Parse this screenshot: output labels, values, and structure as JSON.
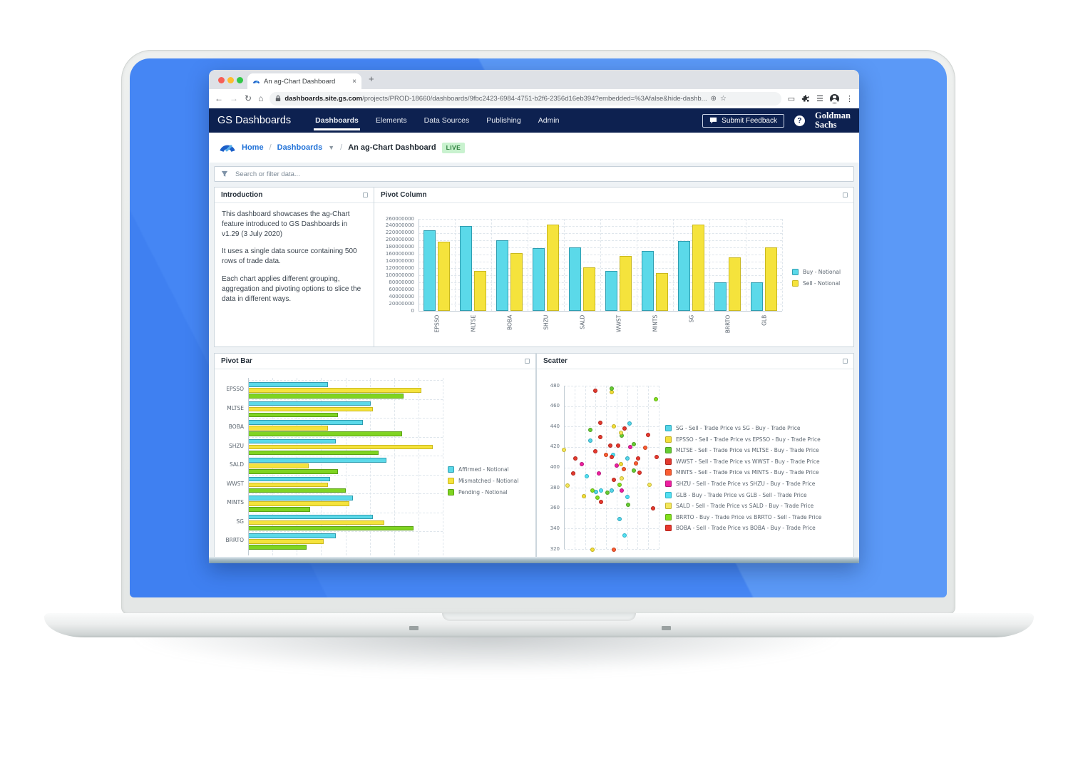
{
  "browser": {
    "tab_title": "An ag-Chart Dashboard",
    "tab_close_glyph": "×",
    "new_tab_glyph": "+",
    "url_domain": "dashboards.site.gs.com",
    "url_path": "/projects/PROD-18660/dashboards/9fbc2423-6984-4751-b2f6-2356d16eb394?embedded=%3Afalse&hide-dashb..."
  },
  "nav": {
    "brand": "GS Dashboards",
    "items": [
      {
        "label": "Dashboards",
        "active": true
      },
      {
        "label": "Elements",
        "active": false
      },
      {
        "label": "Data Sources",
        "active": false
      },
      {
        "label": "Publishing",
        "active": false
      },
      {
        "label": "Admin",
        "active": false
      }
    ],
    "submit_feedback_label": "Submit Feedback",
    "help_glyph": "?",
    "logo_line1": "Goldman",
    "logo_line2": "Sachs"
  },
  "breadcrumb": {
    "home": "Home",
    "separator": "/",
    "section": "Dashboards",
    "current": "An ag-Chart Dashboard",
    "badge": "LIVE"
  },
  "search": {
    "placeholder": "Search or filter data..."
  },
  "panels": {
    "introduction": {
      "title": "Introduction",
      "paragraphs": [
        "This dashboard showcases the ag-Chart feature introduced to GS Dashboards in v1.29 (3 July 2020)",
        "It uses a single data source containing 500 rows of trade data.",
        "Each chart applies different grouping, aggregation and pivoting options to slice the data in different ways."
      ]
    },
    "pivot_column": {
      "title": "Pivot Column"
    },
    "pivot_bar": {
      "title": "Pivot Bar"
    },
    "scatter": {
      "title": "Scatter"
    }
  },
  "colors": {
    "navy": "#0d2150",
    "link_blue": "#2172d8",
    "live_badge_bg": "#c9f2cf",
    "live_badge_text": "#2a7d3b",
    "screen_blue": "#4586f4",
    "buy_cyan": "#5bd9e9",
    "sell_yellow": "#f5e33c",
    "pending_green": "#7fd421"
  },
  "chart_data": [
    {
      "id": "pivot_column",
      "type": "bar",
      "title": "Pivot Column",
      "categories": [
        "EPSSO",
        "MLTSE",
        "BOBA",
        "SHZU",
        "SALD",
        "WWST",
        "MINTS",
        "SG",
        "BRRTO",
        "GLB"
      ],
      "series": [
        {
          "name": "Buy - Notional",
          "color": "#5bd9e9",
          "stroke": "#2f9db0",
          "values": [
            228000000,
            239000000,
            199000000,
            178000000,
            179000000,
            112000000,
            170000000,
            197000000,
            80000000,
            81000000
          ]
        },
        {
          "name": "Sell - Notional",
          "color": "#f5e33c",
          "stroke": "#c9b820",
          "values": [
            196000000,
            112000000,
            164000000,
            244000000,
            122000000,
            156000000,
            106000000,
            243000000,
            152000000,
            180000000
          ]
        }
      ],
      "ylim": [
        0,
        260000000
      ],
      "ytick_step": 20000000,
      "xlabel": "",
      "ylabel": "",
      "grid": true,
      "legend_position": "right"
    },
    {
      "id": "pivot_bar",
      "type": "bar-horizontal",
      "title": "Pivot Bar",
      "categories": [
        "EPSSO",
        "MLTSE",
        "BOBA",
        "SHZU",
        "SALD",
        "WWST",
        "MINTS",
        "SG",
        "BRRTO"
      ],
      "series": [
        {
          "name": "Affirmed - Notional",
          "color": "#5bd9e9",
          "stroke": "#2f9db0",
          "values": [
            41,
            63,
            59,
            45,
            71,
            42,
            54,
            64,
            45
          ]
        },
        {
          "name": "Mismatched - Notional",
          "color": "#f5e33c",
          "stroke": "#c9b820",
          "values": [
            89,
            64,
            41,
            95,
            31,
            41,
            52,
            70,
            39
          ]
        },
        {
          "name": "Pending - Notional",
          "color": "#7fd421",
          "stroke": "#5ba015",
          "values": [
            80,
            46,
            79,
            67,
            46,
            50,
            32,
            85,
            30
          ]
        }
      ],
      "xlim": [
        0,
        100
      ],
      "value_note": "x-axis tick labels cropped off-screen; values estimated as percent of visible axis width",
      "grid": true,
      "legend_position": "right"
    },
    {
      "id": "scatter",
      "type": "scatter",
      "title": "Scatter",
      "ylim": [
        320,
        480
      ],
      "ytick_step": 20,
      "xlim": [
        0,
        100
      ],
      "value_note": "x-axis tick labels cropped off-screen; x estimated as percent of visible axis width",
      "grid": true,
      "legend_position": "right",
      "series": [
        {
          "name": "SG - Sell - Trade Price vs SG - Buy - Trade Price",
          "color": "#57d6e8",
          "stroke": "#2ba6bc",
          "points": [
            [
              69,
              443
            ],
            [
              28,
              426
            ],
            [
              50,
              377
            ],
            [
              34,
              376
            ],
            [
              59,
              349
            ],
            [
              67,
              409
            ]
          ]
        },
        {
          "name": "EPSSO - Sell - Trade Price vs EPSSO - Buy - Trade Price",
          "color": "#f2de39",
          "stroke": "#c0ae1e",
          "points": [
            [
              50,
              474
            ],
            [
              53,
              440
            ],
            [
              60,
              403
            ],
            [
              21,
              372
            ],
            [
              30,
              319
            ]
          ]
        },
        {
          "name": "MLTSE - Sell - Trade Price vs MLTSE - Buy - Trade Price",
          "color": "#66cc33",
          "stroke": "#4d9e22",
          "points": [
            [
              50,
              477
            ],
            [
              28,
              437
            ],
            [
              61,
              431
            ],
            [
              74,
              423
            ],
            [
              74,
              397
            ],
            [
              46,
              375
            ],
            [
              68,
              363
            ]
          ]
        },
        {
          "name": "WWST - Sell - Trade Price vs WWST - Buy - Trade Price",
          "color": "#e23a2e",
          "stroke": "#b02018",
          "points": [
            [
              33,
              475
            ],
            [
              38,
              444
            ],
            [
              64,
              438
            ],
            [
              38,
              430
            ],
            [
              49,
              421
            ],
            [
              12,
              409
            ],
            [
              10,
              394
            ],
            [
              53,
              388
            ],
            [
              94,
              360
            ]
          ]
        },
        {
          "name": "MINTS - Sell - Trade Price vs MINTS - Buy - Trade Price",
          "color": "#fa5d32",
          "stroke": "#c43d1b",
          "points": [
            [
              76,
              404
            ],
            [
              44,
              412
            ],
            [
              63,
              398
            ],
            [
              86,
              419
            ],
            [
              53,
              319
            ]
          ]
        },
        {
          "name": "SHZU - Sell - Trade Price vs SHZU - Buy - Trade Price",
          "color": "#ee1fa0",
          "stroke": "#b51478",
          "points": [
            [
              70,
              420
            ],
            [
              19,
              403
            ],
            [
              37,
              394
            ],
            [
              56,
              402
            ],
            [
              61,
              377
            ]
          ]
        },
        {
          "name": "GLB - Buy - Trade Price vs GLB - Sell - Trade Price",
          "color": "#54dff0",
          "stroke": "#2bb3c8",
          "points": [
            [
              52,
              412
            ],
            [
              24,
              391
            ],
            [
              39,
              377
            ],
            [
              67,
              371
            ],
            [
              64,
              333
            ]
          ]
        },
        {
          "name": "SALD - Sell - Trade Price vs SALD - Buy - Trade Price",
          "color": "#f4e75c",
          "stroke": "#c3b32e",
          "points": [
            [
              0,
              417
            ],
            [
              60,
              434
            ],
            [
              61,
              389
            ],
            [
              4,
              382
            ],
            [
              90,
              383
            ]
          ]
        },
        {
          "name": "BRRTO - Buy - Trade Price vs BRRTO - Sell - Trade Price",
          "color": "#84e01e",
          "stroke": "#5fae12",
          "points": [
            [
              97,
              467
            ],
            [
              30,
              377
            ],
            [
              35,
              370
            ],
            [
              59,
              383
            ]
          ]
        },
        {
          "name": "BOBA - Sell - Trade Price vs BOBA - Buy - Trade Price",
          "color": "#e8392f",
          "stroke": "#b5221a",
          "points": [
            [
              89,
              432
            ],
            [
              57,
              421
            ],
            [
              33,
              416
            ],
            [
              50,
              410
            ],
            [
              78,
              409
            ],
            [
              80,
              395
            ],
            [
              39,
              366
            ],
            [
              98,
              410
            ]
          ]
        }
      ]
    }
  ]
}
